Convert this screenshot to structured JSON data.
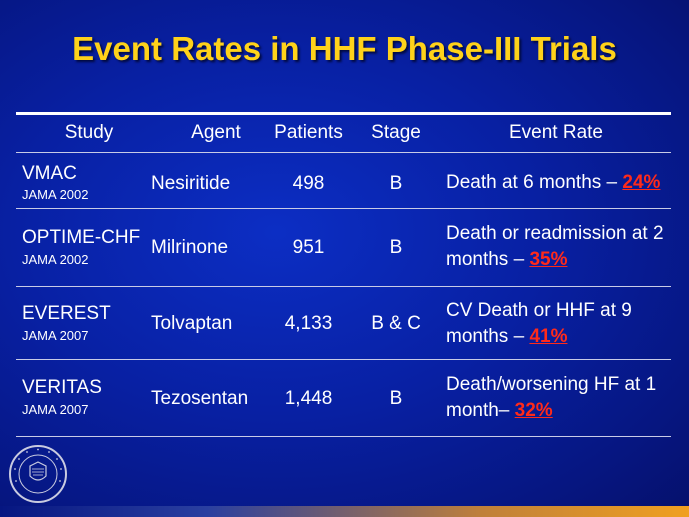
{
  "slide": {
    "title": "Event Rates in HHF Phase-III Trials"
  },
  "table": {
    "headers": {
      "study": "Study",
      "agent": "Agent",
      "patients": "Patients",
      "stage": "Stage",
      "event_rate": "Event Rate"
    },
    "rows": [
      {
        "study": "VMAC",
        "source": "JAMA 2002",
        "agent": "Nesiritide",
        "patients": "498",
        "stage": "B",
        "rate_text": "Death at 6 months – ",
        "rate_pct": "24%"
      },
      {
        "study": "OPTIME-CHF",
        "source": "JAMA 2002",
        "agent": "Milrinone",
        "patients": "951",
        "stage": "B",
        "rate_text": "Death or readmission at 2 months – ",
        "rate_pct": "35%"
      },
      {
        "study": "EVEREST",
        "source": "JAMA 2007",
        "agent": "Tolvaptan",
        "patients": "4,133",
        "stage": "B & C",
        "rate_text": "CV Death or HHF at 9 months – ",
        "rate_pct": "41%"
      },
      {
        "study": "VERITAS",
        "source": "JAMA 2007",
        "agent": "Tezosentan",
        "patients": "1,448",
        "stage": "B",
        "rate_text": "Death/worsening HF at 1 month– ",
        "rate_pct": "32%"
      }
    ]
  },
  "logo": {
    "name": "northwestern-university-seal",
    "text": "NORTHWESTERN UNIVERSITY 1851"
  },
  "colors": {
    "title": "#ffd21a",
    "highlight": "#ff2a1a",
    "background": "#0820a3"
  }
}
